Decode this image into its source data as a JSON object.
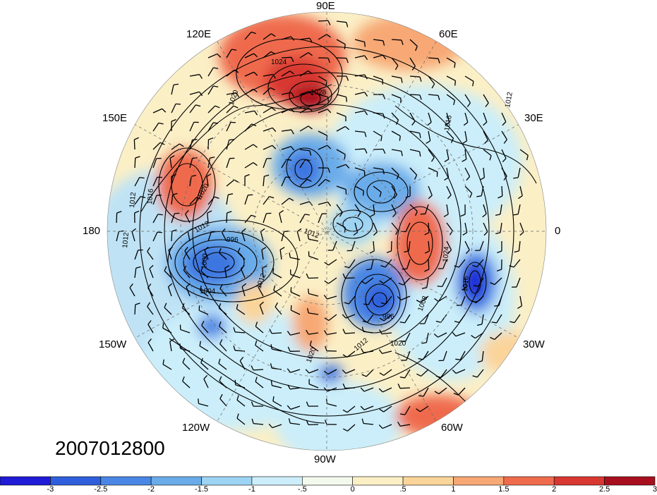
{
  "map": {
    "timestamp": "2007012800",
    "longitude_labels": [
      {
        "id": "lon-90e",
        "text": "90E"
      },
      {
        "id": "lon-120e",
        "text": "120E"
      },
      {
        "id": "lon-60e",
        "text": "60E"
      },
      {
        "id": "lon-150e",
        "text": "150E"
      },
      {
        "id": "lon-30e",
        "text": "30E"
      },
      {
        "id": "lon-180",
        "text": "180"
      },
      {
        "id": "lon-0",
        "text": "0"
      },
      {
        "id": "lon-150w",
        "text": "150W"
      },
      {
        "id": "lon-30w",
        "text": "30W"
      },
      {
        "id": "lon-120w",
        "text": "120W"
      },
      {
        "id": "lon-60w",
        "text": "60W"
      },
      {
        "id": "lon-90w",
        "text": "90W"
      }
    ],
    "contour_labels": [
      "1024",
      "1028",
      "1020",
      "1016",
      "1012",
      "1016",
      "1020",
      "1012",
      "1012",
      "996",
      "1000",
      "1004",
      "1012",
      "1012",
      "1024",
      "1016",
      "1008",
      "1012",
      "1020",
      "1012",
      "996",
      "1020"
    ]
  },
  "colorbar": {
    "colors": [
      "#1f1bd6",
      "#2f5fdc",
      "#4a86e4",
      "#6aace9",
      "#9ed4f3",
      "#cbeefa",
      "#f4f9ee",
      "#fbefc6",
      "#fbd49a",
      "#f7a874",
      "#ef6b4d",
      "#d93731",
      "#a80f1e"
    ],
    "tick_labels": [
      "-3",
      "-2.5",
      "-2",
      "-1.5",
      "-1",
      "-.5",
      "0",
      ".5",
      "1",
      "1.5",
      "2",
      "2.5",
      "3"
    ]
  }
}
